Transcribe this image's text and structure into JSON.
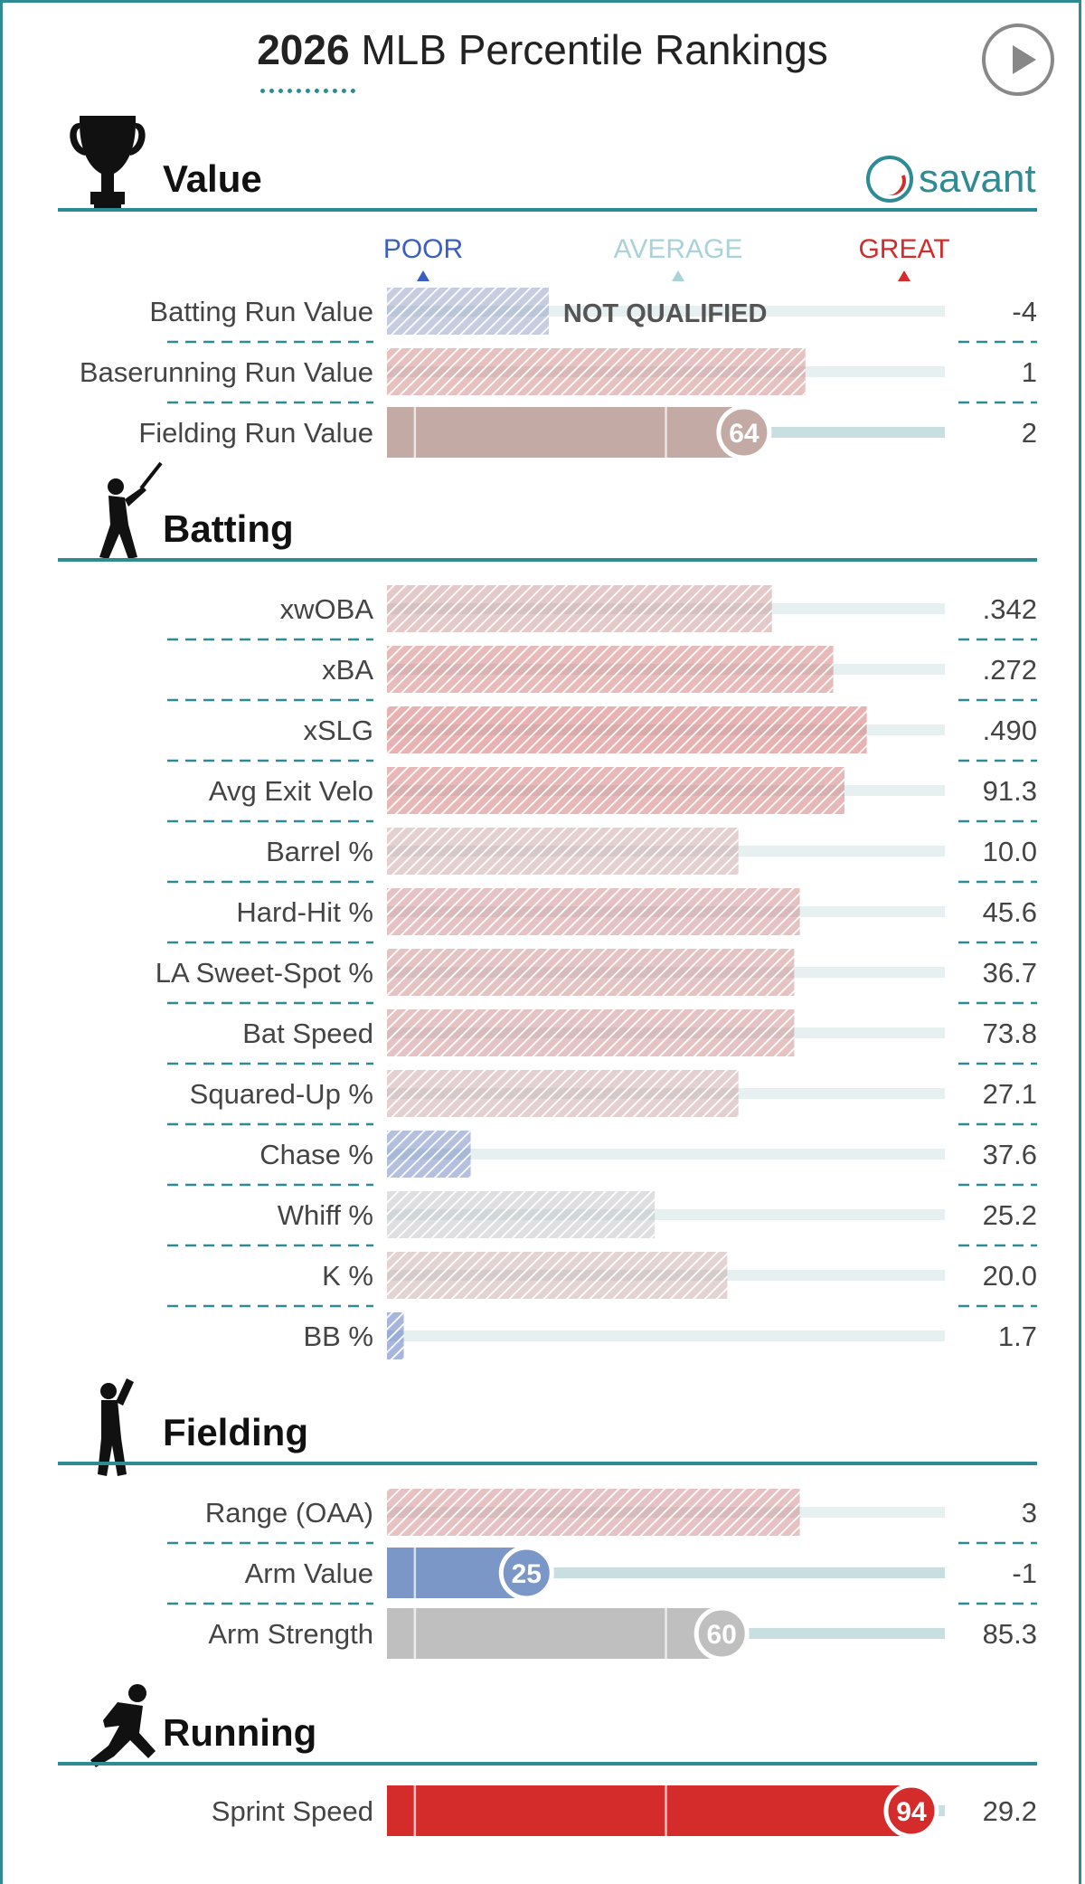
{
  "header": {
    "year": "2026",
    "title": "MLB Percentile Rankings",
    "brand": "savant"
  },
  "scale_labels": {
    "poor": "POOR",
    "average": "AVERAGE",
    "great": "GREAT"
  },
  "colors": {
    "teal": "#2e8b94",
    "poor": "#3b5fc0",
    "average": "#a9d3d6",
    "great": "#d42b2b",
    "track": "#e6f0f1",
    "text": "#333333"
  },
  "chart_data": {
    "type": "bar",
    "title": "2026 MLB Percentile Rankings",
    "sections": [
      {
        "name": "Value",
        "icon": "trophy-icon",
        "metrics": [
          {
            "label": "Batting Run Value",
            "percentile": 29,
            "value": "-4",
            "status": "NOT QUALIFIED",
            "style": "hatched"
          },
          {
            "label": "Baserunning Run Value",
            "percentile": 75,
            "value": "1",
            "style": "hatched"
          },
          {
            "label": "Fielding Run Value",
            "percentile": 64,
            "value": "2",
            "style": "solid",
            "color": "#c4aaa4"
          }
        ]
      },
      {
        "name": "Batting",
        "icon": "batter-icon",
        "metrics": [
          {
            "label": "xwOBA",
            "percentile": 69,
            "value": ".342",
            "style": "hatched"
          },
          {
            "label": "xBA",
            "percentile": 80,
            "value": ".272",
            "style": "hatched"
          },
          {
            "label": "xSLG",
            "percentile": 86,
            "value": ".490",
            "style": "hatched"
          },
          {
            "label": "Avg Exit Velo",
            "percentile": 82,
            "value": "91.3",
            "style": "hatched"
          },
          {
            "label": "Barrel %",
            "percentile": 63,
            "value": "10.0",
            "style": "hatched"
          },
          {
            "label": "Hard-Hit %",
            "percentile": 74,
            "value": "45.6",
            "style": "hatched"
          },
          {
            "label": "LA Sweet-Spot %",
            "percentile": 73,
            "value": "36.7",
            "style": "hatched"
          },
          {
            "label": "Bat Speed",
            "percentile": 73,
            "value": "73.8",
            "style": "hatched"
          },
          {
            "label": "Squared-Up %",
            "percentile": 63,
            "value": "27.1",
            "style": "hatched"
          },
          {
            "label": "Chase %",
            "percentile": 15,
            "value": "37.6",
            "style": "hatched"
          },
          {
            "label": "Whiff %",
            "percentile": 48,
            "value": "25.2",
            "style": "hatched"
          },
          {
            "label": "K %",
            "percentile": 61,
            "value": "20.0",
            "style": "hatched"
          },
          {
            "label": "BB %",
            "percentile": 3,
            "value": "1.7",
            "style": "hatched"
          }
        ]
      },
      {
        "name": "Fielding",
        "icon": "fielder-icon",
        "metrics": [
          {
            "label": "Range (OAA)",
            "percentile": 74,
            "value": "3",
            "style": "hatched"
          },
          {
            "label": "Arm Value",
            "percentile": 25,
            "value": "-1",
            "style": "solid",
            "color": "#7a97c8"
          },
          {
            "label": "Arm Strength",
            "percentile": 60,
            "value": "85.3",
            "style": "solid",
            "color": "#bfbfbf"
          }
        ]
      },
      {
        "name": "Running",
        "icon": "runner-icon",
        "metrics": [
          {
            "label": "Sprint Speed",
            "percentile": 94,
            "value": "29.2",
            "style": "solid",
            "color": "#d42b2b"
          }
        ]
      }
    ],
    "xlim": [
      0,
      100
    ],
    "grid": false,
    "legend": "none"
  }
}
